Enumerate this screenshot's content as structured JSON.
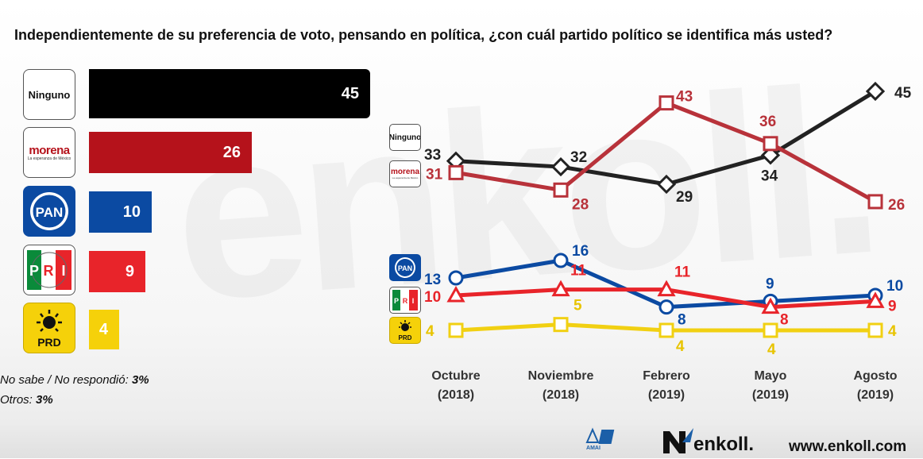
{
  "title": "Independientemente de su preferencia de voto, pensando en política, ¿con cuál partido político se identifica más usted?",
  "colors": {
    "ninguno": "#000000",
    "morena": "#b5121b",
    "pan": "#0b4aa2",
    "pri": "#e8242a",
    "prd": "#f5d10a",
    "morena_line": "#b8323a",
    "ninguno_line": "#222222",
    "prd_line": "#f1d012"
  },
  "parties": {
    "ninguno": {
      "label": "Ninguno"
    },
    "morena": {
      "label": "morena",
      "sub": "La esperanza de México"
    },
    "pan": {
      "label": "PAN"
    },
    "pri": {
      "label": "PRI"
    },
    "prd": {
      "label": "PRD"
    }
  },
  "footnotes": {
    "no_sabe_label": "No sabe / No respondió:",
    "no_sabe_value": "3%",
    "otros_label": "Otros:",
    "otros_value": "3%"
  },
  "footer": {
    "amai_label": "AMAI",
    "brand": "enkoll.",
    "url": "www.enkoll.com"
  },
  "chart_data": [
    {
      "type": "bar",
      "orientation": "horizontal",
      "categories": [
        "Ninguno",
        "morena",
        "PAN",
        "PRI",
        "PRD"
      ],
      "values": [
        45,
        26,
        10,
        9,
        4
      ]
    },
    {
      "type": "line",
      "x": [
        "Octubre (2018)",
        "Noviembre (2018)",
        "Febrero (2019)",
        "Mayo (2019)",
        "Agosto (2019)"
      ],
      "x_labels": [
        {
          "line1": "Octubre",
          "line2": "(2018)"
        },
        {
          "line1": "Noviembre",
          "line2": "(2018)"
        },
        {
          "line1": "Febrero",
          "line2": "(2019)"
        },
        {
          "line1": "Mayo",
          "line2": "(2019)"
        },
        {
          "line1": "Agosto",
          "line2": "(2019)"
        }
      ],
      "series": [
        {
          "name": "Ninguno",
          "marker": "diamond",
          "values": [
            33,
            32,
            29,
            34,
            45
          ]
        },
        {
          "name": "morena",
          "marker": "square",
          "values": [
            31,
            28,
            43,
            36,
            26
          ]
        },
        {
          "name": "PAN",
          "marker": "circle",
          "values": [
            13,
            16,
            8,
            9,
            10
          ]
        },
        {
          "name": "PRI",
          "marker": "triangle",
          "values": [
            10,
            11,
            11,
            8,
            9
          ]
        },
        {
          "name": "PRD",
          "marker": "square",
          "values": [
            4,
            5,
            4,
            4,
            4
          ]
        }
      ]
    }
  ]
}
